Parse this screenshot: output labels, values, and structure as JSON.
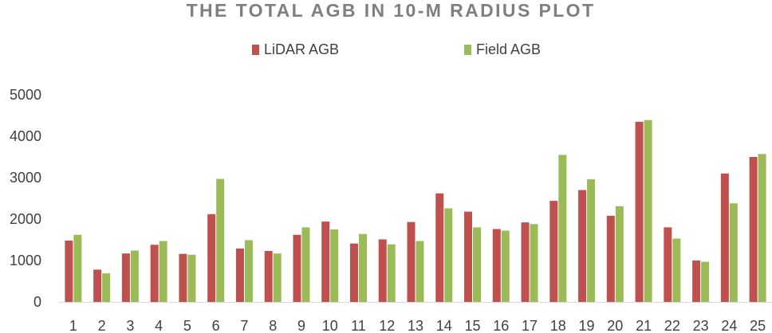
{
  "chart_data": {
    "type": "bar",
    "title": "THE TOTAL AGB IN 10-M RADIUS PLOT",
    "xlabel": "",
    "ylabel": "",
    "legend_position": "top-center",
    "grid": false,
    "ylim": [
      0,
      5000
    ],
    "yticks": [
      "0",
      "1000",
      "2000",
      "3000",
      "4000",
      "5000"
    ],
    "categories": [
      "1",
      "2",
      "3",
      "4",
      "5",
      "6",
      "7",
      "8",
      "9",
      "10",
      "11",
      "12",
      "13",
      "14",
      "15",
      "16",
      "17",
      "18",
      "19",
      "20",
      "21",
      "22",
      "23",
      "24",
      "25"
    ],
    "series": [
      {
        "name": "LiDAR AGB",
        "color": "#c0504d",
        "values": [
          1480,
          780,
          1170,
          1380,
          1160,
          2120,
          1290,
          1230,
          1620,
          1940,
          1410,
          1510,
          1930,
          2620,
          2180,
          1760,
          1920,
          2440,
          2700,
          2080,
          4350,
          1800,
          1000,
          3100,
          3500
        ]
      },
      {
        "name": "Field AGB",
        "color": "#9bbb59",
        "values": [
          1620,
          690,
          1240,
          1470,
          1140,
          2970,
          1490,
          1170,
          1800,
          1750,
          1640,
          1390,
          1470,
          2260,
          1800,
          1720,
          1880,
          3550,
          2960,
          2310,
          4390,
          1530,
          970,
          2380,
          3570
        ]
      }
    ]
  }
}
